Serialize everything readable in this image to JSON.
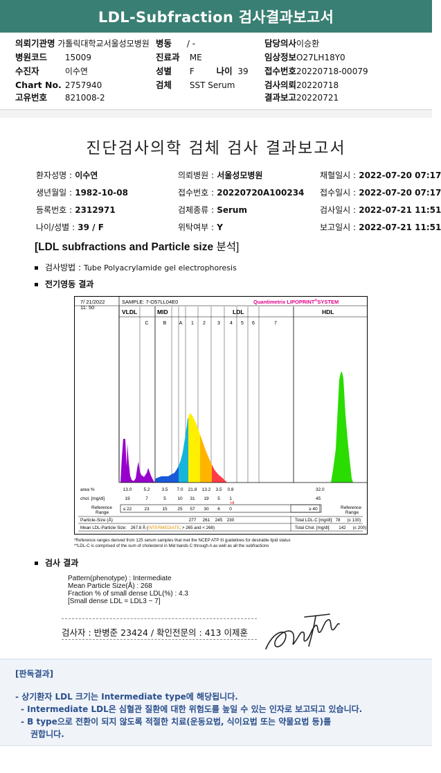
{
  "header": {
    "title": "LDL-Subfraction 검사결과보고서"
  },
  "meta": {
    "institution_label": "의뢰기관명",
    "institution": "가톨릭대학교서울성모병원",
    "ward_label": "병동",
    "ward": "/ -",
    "doctor_label": "담당의사",
    "doctor": "이승환",
    "hospital_code_label": "병원코드",
    "hospital_code": "15009",
    "dept_label": "진료과",
    "dept": "ME",
    "clinical_label": "임상정보",
    "clinical": "O27LH18Y0",
    "patient_label": "수진자",
    "patient": "이수연",
    "sex_label": "성별",
    "sex": "F",
    "age_label": "나이",
    "age": "39",
    "receipt_label": "접수번호",
    "receipt": "20220718-00079",
    "chart_label": "Chart No.",
    "chart": "2757940",
    "specimen_label": "검체",
    "specimen": "SST Serum",
    "request_label": "검사의뢰",
    "request": "20220718",
    "id_label": "고유번호",
    "id": "821008-2",
    "report_label": "결과보고",
    "report": "20220721"
  },
  "report": {
    "title": "진단검사의학 검체 검사 결과보고서",
    "fields": [
      {
        "label": "환자성명 :",
        "value": "이수연"
      },
      {
        "label": "의뢰병원 :",
        "value": "서울성모병원"
      },
      {
        "label": "채혈일시 :",
        "value": "2022-07-20 07:17"
      },
      {
        "label": "생년월일 :",
        "value": "1982-10-08"
      },
      {
        "label": "접수번호 :",
        "value": "20220720A100234"
      },
      {
        "label": "접수일시 :",
        "value": "2022-07-20 07:17"
      },
      {
        "label": "등록번호 :",
        "value": "2312971"
      },
      {
        "label": "검체종류 :",
        "value": "Serum"
      },
      {
        "label": "검사일시 :",
        "value": "2022-07-21 11:51"
      },
      {
        "label": "나이/성별 :",
        "value": "39 / F"
      },
      {
        "label": "위탁여부 :",
        "value": "Y"
      },
      {
        "label": "보고일시 :",
        "value": "2022-07-21 11:51"
      }
    ],
    "section_title": "[LDL subfractions and Particle size",
    "section_title_kr": "분석]",
    "method_label": "검사방법 :",
    "method": "Tube Polyacrylamide gel electrophoresis",
    "electro_label": "전기영동 결과",
    "result_label": "검사 결과"
  },
  "chart": {
    "date": "7/ 21/2022",
    "time": "11: 50",
    "sample": "SAMPLE:  7-O57LL04E0",
    "brand": "Quantimetrix LIPOPRINT",
    "brand_sup": "®",
    "brand_tail": "SYSTEM",
    "band_vldl": "VLDL",
    "band_mid": "MID",
    "band_ldl": "LDL",
    "band_hdl": "HDL",
    "sub_labels": [
      "C",
      "B",
      "A",
      "1",
      "2",
      "3",
      "4",
      "5",
      "6",
      "7"
    ],
    "row_area_label": "area %",
    "area_values": [
      "13.0",
      "5.2",
      "3.5",
      "7.0",
      "21.8",
      "13.2",
      "3.5",
      "0.8"
    ],
    "area_hdl": "32.0",
    "row_chol_label": "chol. [mg/dl]",
    "chol_values": [
      "19",
      "7",
      "5",
      "10",
      "31",
      "19",
      "5",
      "1"
    ],
    "chol_flag": "HI",
    "chol_hdl": "45",
    "ref_label_1": "Reference",
    "ref_label_2": "Range",
    "ref_values": [
      "≤ 22",
      "23",
      "15",
      "25",
      "57",
      "30",
      "6",
      "0"
    ],
    "ref_hdl": "≥ 40",
    "particle_label": "Particle-Size (Å)",
    "particle_values": [
      "277",
      "261",
      "245",
      "230"
    ],
    "total_ldl_label": "Total LDL-C [mg/dl]:",
    "total_ldl": "78",
    "total_ldl_ref": "(≤ 130)",
    "mean_label": "Mean LDL-Particle Size:",
    "mean_value": "267.8 Å",
    "mean_type": "INTERMEDIATE",
    "mean_range": "> 265 and < 268)",
    "total_chol_label": "Total Chol. [mg/dl]:",
    "total_chol": "142",
    "total_chol_ref": "(≤ 200)",
    "footnote1": "*Reference ranges derived from 125 serum samples that met the NCEP ATP III guidelines for desirable lipid status",
    "footnote2": "**LDL-C is comprised of the sum of cholesterol in Mid bands C through A as well as all the subfractions"
  },
  "results": {
    "l1": "Pattern(phenotype) : Intermediate",
    "l2": "Mean Particle Size(Å) : 268",
    "l3": "Fraction % of small dense LDL(%) : 4.3",
    "l4": "[Small dense LDL = LDL3 ~ 7]"
  },
  "signature": {
    "text": "검사자 : 반병준  23424  /  확인전문의 : 413  이제훈"
  },
  "interpretation": {
    "heading": "[판독결과]",
    "line1": "- 상기환자 LDL 크기는 Intermediate type에 해당됩니다.",
    "line2": "- Intermediate LDL은 심혈관 질환에 대한 위험도를 높일 수 있는 인자로 보고되고 있습니다.",
    "line3": "- B type으로 전환이 되지 않도록 적절한 치료(운동요법, 식이요법 또는 약물요법 등)를",
    "line4": "권합니다."
  },
  "colors": {
    "header_bg": "#3a7f73",
    "interp_text": "#2b4f8c"
  }
}
